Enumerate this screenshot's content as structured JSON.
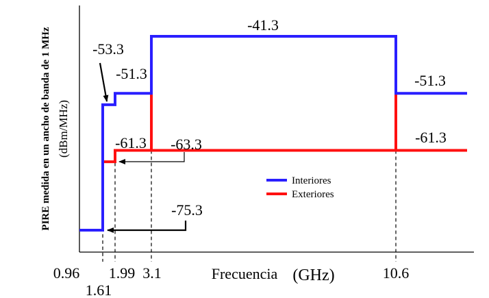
{
  "chart_data": {
    "type": "line",
    "step": true,
    "ylabel_line1": "PIRE medida en un ancho de banda de 1 MHz",
    "ylabel_line2": "(dBm/MHz)",
    "xlabel_word": "Frecuencia",
    "xlabel_unit": "(GHz)",
    "x_ticks": [
      "0.96",
      "1.61",
      "1.99",
      "3.1",
      "10.6"
    ],
    "x_range_end": 13.0,
    "series": [
      {
        "name": "Interiores",
        "color": "#2a1fff",
        "points": [
          {
            "x": 0.96,
            "y": -75.3
          },
          {
            "x": 1.61,
            "y": -75.3
          },
          {
            "x": 1.61,
            "y": -53.3
          },
          {
            "x": 1.99,
            "y": -53.3
          },
          {
            "x": 1.99,
            "y": -51.3
          },
          {
            "x": 3.1,
            "y": -51.3
          },
          {
            "x": 3.1,
            "y": -41.3
          },
          {
            "x": 10.6,
            "y": -41.3
          },
          {
            "x": 10.6,
            "y": -51.3
          },
          {
            "x": 13.0,
            "y": -51.3
          }
        ]
      },
      {
        "name": "Exteriores",
        "color": "#ff1010",
        "points": [
          {
            "x": 1.61,
            "y": -63.3
          },
          {
            "x": 1.99,
            "y": -63.3
          },
          {
            "x": 1.99,
            "y": -61.3
          },
          {
            "x": 3.1,
            "y": -61.3
          },
          {
            "x": 3.1,
            "y": -51.3
          },
          {
            "x": 3.1,
            "y": -61.3
          },
          {
            "x": 10.6,
            "y": -61.3
          },
          {
            "x": 10.6,
            "y": -51.3
          },
          {
            "x": 10.6,
            "y": -61.3
          },
          {
            "x": 13.0,
            "y": -61.3
          }
        ]
      }
    ],
    "annotations": {
      "a_top": "-41.3",
      "a_notch": "-53.3",
      "a_blue_left": "-51.3",
      "a_red_left": "-61.3",
      "a_red_notch": "-63.3",
      "a_bottom": "-75.3",
      "a_blue_right": "-51.3",
      "a_red_right": "-61.3"
    }
  }
}
